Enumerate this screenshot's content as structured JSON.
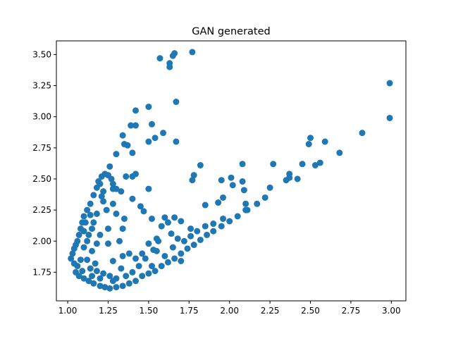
{
  "chart_data": {
    "type": "scatter",
    "title": "GAN generated",
    "color": "#1f77b4",
    "xlim": [
      0.93,
      3.09
    ],
    "ylim": [
      1.52,
      3.61
    ],
    "xticks": [
      {
        "value": 1.0,
        "label": "1.00"
      },
      1.25,
      {
        "value": 1.5,
        "label": "1.50"
      },
      1.75,
      {
        "value": 2.0,
        "label": "2.00"
      },
      2.25,
      {
        "value": 2.5,
        "label": "2.50"
      },
      2.75,
      {
        "value": 3.0,
        "label": "3.00"
      }
    ],
    "yticks": [
      1.75,
      {
        "value": 2.0,
        "label": "2.00"
      },
      2.25,
      {
        "value": 2.5,
        "label": "2.50"
      },
      2.75,
      {
        "value": 3.0,
        "label": "3.00"
      },
      3.25,
      {
        "value": 3.5,
        "label": "3.50"
      }
    ],
    "x": [
      1.77,
      1.66,
      1.65,
      1.57,
      1.63,
      1.63,
      2.99,
      2.99,
      1.5,
      1.42,
      1.67,
      1.52,
      1.39,
      1.42,
      1.59,
      1.34,
      1.54,
      1.5,
      1.67,
      1.35,
      1.37,
      1.3,
      1.4,
      2.5,
      2.49,
      2.59,
      2.82,
      2.68,
      2.56,
      2.53,
      2.45,
      2.42,
      2.37,
      2.37,
      2.35,
      2.27,
      2.25,
      2.22,
      2.17,
      2.08,
      2.08,
      2.09,
      2.1,
      2.11,
      2.01,
      2.02,
      1.95,
      1.96,
      1.93,
      1.85,
      1.82,
      1.78,
      1.77,
      1.02,
      1.03,
      1.04,
      1.05,
      1.06,
      1.07,
      1.08,
      1.09,
      1.1,
      1.12,
      1.14,
      1.16,
      1.18,
      1.19,
      1.21,
      1.23,
      1.25,
      1.27,
      1.2,
      1.22,
      1.28,
      1.3,
      1.33,
      1.36,
      1.4,
      1.42,
      1.5,
      1.4,
      1.45,
      1.47,
      1.52,
      1.58,
      1.55,
      1.5,
      1.55,
      1.48,
      1.42,
      1.38,
      1.34,
      1.25,
      1.24,
      1.28,
      1.22,
      1.18,
      1.15,
      1.12,
      1.1,
      1.08,
      1.06,
      1.05,
      1.07,
      1.1,
      1.13,
      1.16,
      1.2,
      1.23,
      1.26,
      1.3,
      1.34,
      1.38,
      1.42,
      1.46,
      1.5,
      1.54,
      1.58,
      1.62,
      1.66,
      1.7,
      1.74,
      1.78,
      1.82,
      1.86,
      1.9,
      1.95,
      2.0,
      2.05,
      2.1,
      1.14,
      1.18,
      1.22,
      1.26,
      1.3,
      1.2,
      1.28,
      1.36,
      1.4,
      1.12,
      1.15,
      1.18,
      1.13,
      1.16,
      1.2,
      1.1,
      1.11,
      1.25,
      1.28,
      1.33,
      1.44,
      1.6,
      1.65,
      1.68,
      1.72,
      1.76,
      1.64,
      1.62,
      1.6,
      1.66,
      1.7,
      1.76,
      1.8,
      1.85,
      1.9,
      1.96,
      1.7,
      1.52,
      1.46,
      1.04,
      1.09,
      1.15,
      1.17,
      1.32,
      1.35,
      1.3,
      1.21,
      1.14,
      1.26,
      1.28,
      1.34,
      1.53,
      1.56
    ],
    "values": [
      3.52,
      3.51,
      3.49,
      3.47,
      3.43,
      3.4,
      3.27,
      2.99,
      3.08,
      3.05,
      3.12,
      2.94,
      2.93,
      2.93,
      2.87,
      2.85,
      2.83,
      2.8,
      2.8,
      2.78,
      2.77,
      2.7,
      2.71,
      2.83,
      2.78,
      2.8,
      2.87,
      2.71,
      2.63,
      2.61,
      2.62,
      2.5,
      2.54,
      2.51,
      2.49,
      2.62,
      2.43,
      2.35,
      2.3,
      2.62,
      2.48,
      2.41,
      2.3,
      2.25,
      2.51,
      2.45,
      2.49,
      2.35,
      2.31,
      2.29,
      2.61,
      2.53,
      2.49,
      1.86,
      1.9,
      1.94,
      1.97,
      2.0,
      2.05,
      2.1,
      2.15,
      2.2,
      2.25,
      2.3,
      2.37,
      2.43,
      2.48,
      2.52,
      2.54,
      2.53,
      2.5,
      2.46,
      2.4,
      2.46,
      2.42,
      2.4,
      2.52,
      2.52,
      2.54,
      2.42,
      2.34,
      2.28,
      2.24,
      2.18,
      2.12,
      2.02,
      1.98,
      1.92,
      1.86,
      1.86,
      1.9,
      1.88,
      2.1,
      2.25,
      2.3,
      2.32,
      2.22,
      2.1,
      2.0,
      1.95,
      1.85,
      1.8,
      1.75,
      1.72,
      1.7,
      1.68,
      1.66,
      1.64,
      1.63,
      1.62,
      1.63,
      1.64,
      1.66,
      1.68,
      1.72,
      1.74,
      1.76,
      1.8,
      1.83,
      1.86,
      1.9,
      1.94,
      1.97,
      2.01,
      2.05,
      2.08,
      2.12,
      2.16,
      2.2,
      2.25,
      1.78,
      1.76,
      1.74,
      1.72,
      1.7,
      1.7,
      1.68,
      1.72,
      1.75,
      1.85,
      1.92,
      1.98,
      2.05,
      2.15,
      2.05,
      2.08,
      2.15,
      1.98,
      1.84,
      1.78,
      1.8,
      1.88,
      1.95,
      2.02,
      2.0,
      2.04,
      2.06,
      2.15,
      2.19,
      2.19,
      2.16,
      2.1,
      2.08,
      2.12,
      2.14,
      2.18,
      1.84,
      1.8,
      1.9,
      1.82,
      1.76,
      1.72,
      1.82,
      2.0,
      2.18,
      2.22,
      2.36,
      2.21,
      2.6,
      2.42,
      2.1,
      1.93,
      2.0
    ]
  }
}
